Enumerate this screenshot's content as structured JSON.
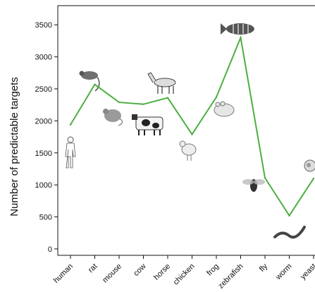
{
  "chart_data": {
    "type": "line",
    "title": "",
    "xlabel": "",
    "ylabel": "Number of predictable targets",
    "categories": [
      "human",
      "rat",
      "mouse",
      "cow",
      "horse",
      "chicken",
      "frog",
      "zebrafish",
      "fly",
      "worm",
      "yeast"
    ],
    "series": [
      {
        "values": [
          1940,
          2570,
          2290,
          2260,
          2360,
          1790,
          2370,
          3300,
          1110,
          520,
          1100
        ]
      }
    ],
    "ylim": [
      -100,
      3800
    ],
    "yticks": [
      0,
      500,
      1000,
      1500,
      2000,
      2500,
      3000,
      3500
    ],
    "grid": false,
    "line_color": "#4caf3f",
    "axis_color": "#111111",
    "icons": [
      "human-figure-icon",
      "rat-icon",
      "mouse-icon",
      "cow-icon",
      "horse-icon",
      "chicken-icon",
      "frog-icon",
      "zebrafish-icon",
      "fly-icon",
      "worm-icon",
      "yeast-icon"
    ]
  }
}
